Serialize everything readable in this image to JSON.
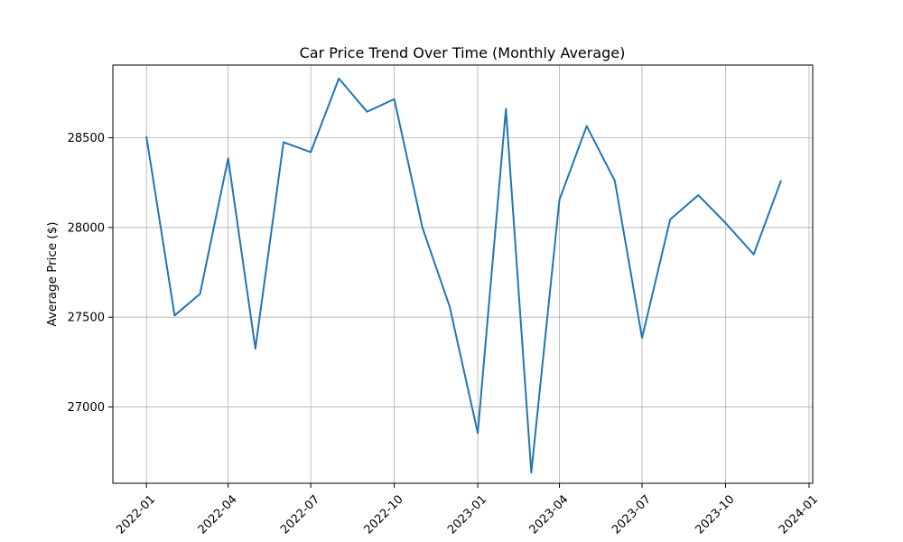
{
  "chart_data": {
    "type": "line",
    "title": "Car Price Trend Over Time (Monthly Average)",
    "xlabel": "",
    "ylabel": "Average Price ($)",
    "grid": true,
    "line_color": "#1f77b4",
    "x_ticks": [
      "2022-01",
      "2022-04",
      "2022-07",
      "2022-10",
      "2023-01",
      "2023-04",
      "2023-07",
      "2023-10",
      "2024-01"
    ],
    "y_ticks": [
      27000,
      27500,
      28000,
      28500
    ],
    "xlim": [
      "2021-11-25",
      "2024-01-05"
    ],
    "ylim": [
      26575,
      28905
    ],
    "x": [
      "2022-01",
      "2022-02",
      "2022-03",
      "2022-04",
      "2022-05",
      "2022-06",
      "2022-07",
      "2022-08",
      "2022-09",
      "2022-10",
      "2022-11",
      "2022-12",
      "2023-01",
      "2023-02",
      "2023-03",
      "2023-04",
      "2023-05",
      "2023-06",
      "2023-07",
      "2023-08",
      "2023-09",
      "2023-10",
      "2023-11",
      "2023-12"
    ],
    "values": [
      28505,
      27510,
      27630,
      28385,
      27325,
      28475,
      28420,
      28830,
      28645,
      28715,
      28000,
      27560,
      26855,
      28660,
      26635,
      28155,
      28565,
      28260,
      27385,
      28045,
      28180,
      28025,
      27850,
      28260
    ]
  }
}
